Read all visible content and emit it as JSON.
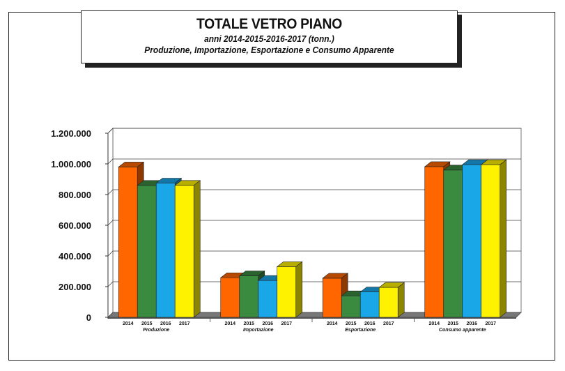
{
  "title": "TOTALE VETRO PIANO",
  "subtitle1": "anni 2014-2015-2016-2017 (tonn.)",
  "subtitle2": "Produzione, Importazione, Esportazione e Consumo Apparente",
  "chart_data": {
    "type": "bar",
    "categories": [
      "Produzione",
      "Importazione",
      "Esportazione",
      "Consumo apparente"
    ],
    "series": [
      {
        "name": "2014",
        "color": "#FF6600",
        "values": [
          980000,
          258000,
          255000,
          982000
        ]
      },
      {
        "name": "2015",
        "color": "#3A8A3F",
        "values": [
          860000,
          270000,
          140000,
          960000
        ]
      },
      {
        "name": "2016",
        "color": "#1AA7E8",
        "values": [
          875000,
          240000,
          165000,
          995000
        ]
      },
      {
        "name": "2017",
        "color": "#FFF200",
        "values": [
          860000,
          330000,
          195000,
          995000
        ]
      }
    ],
    "ylim": [
      0,
      1200000
    ],
    "yticks": [
      0,
      200000,
      400000,
      600000,
      800000,
      1000000,
      1200000
    ],
    "ytick_labels": [
      "0",
      "200.000",
      "400.000",
      "600.000",
      "800.000",
      "1.000.000",
      "1.200.000"
    ],
    "grid": true
  }
}
